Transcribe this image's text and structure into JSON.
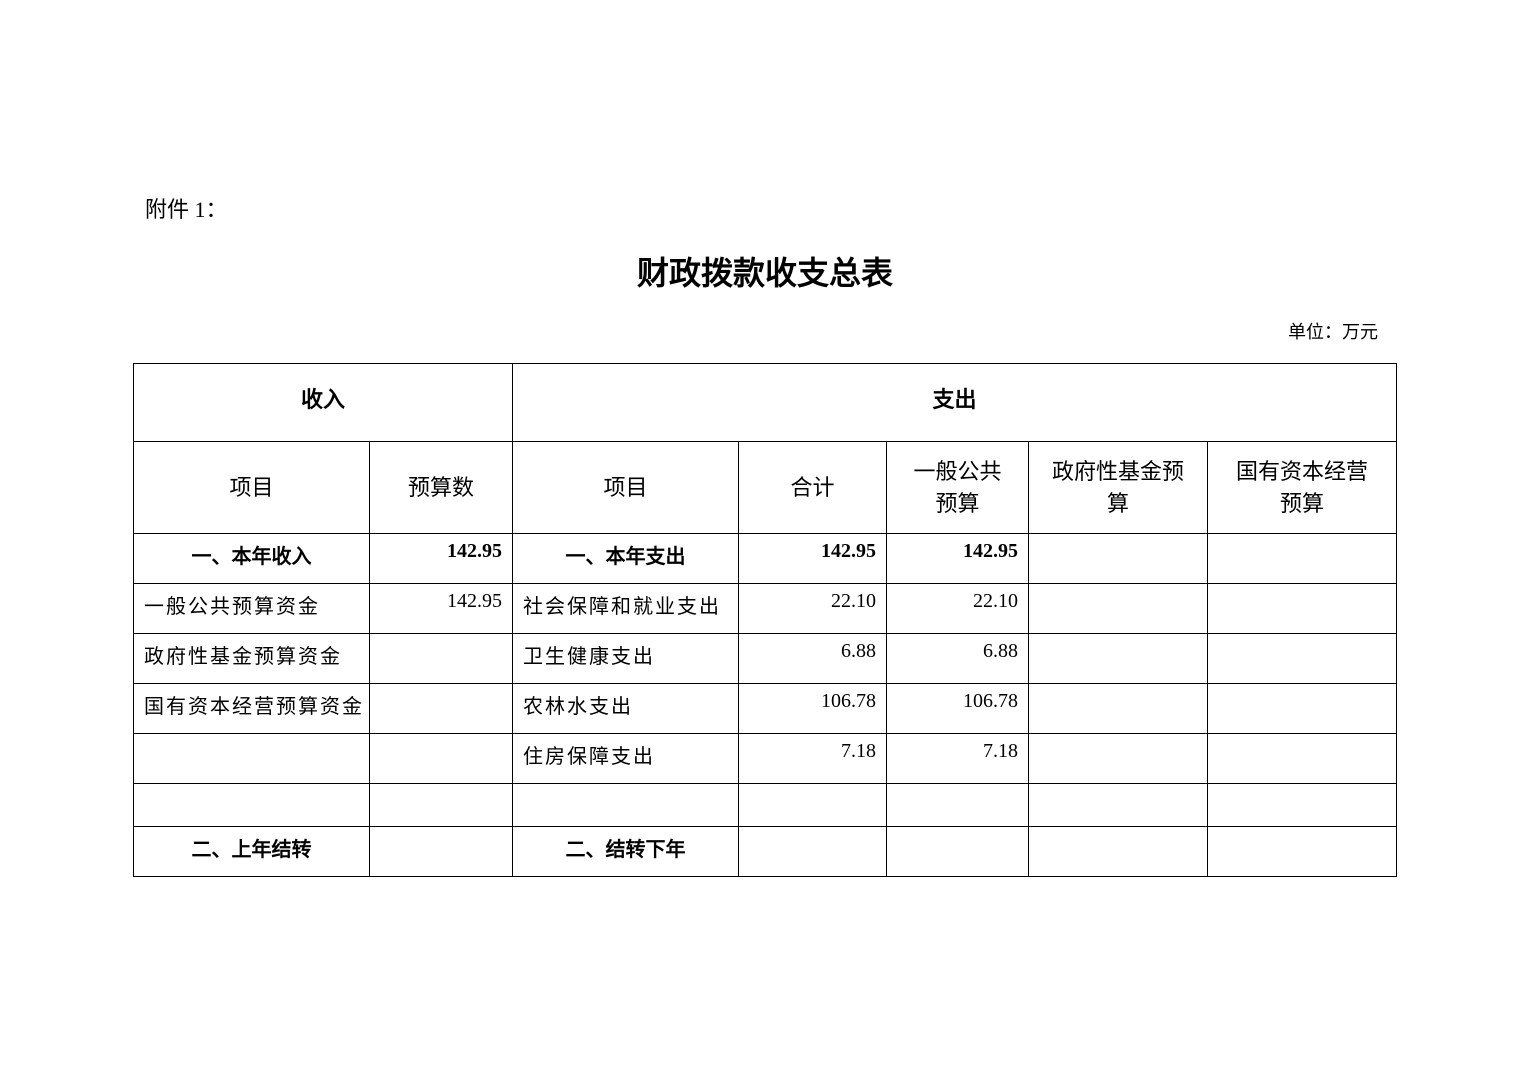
{
  "attachment_label": "附件 1：",
  "title": "财政拨款收支总表",
  "unit": "单位：万元",
  "table": {
    "group_headers": {
      "income": "收入",
      "expense": "支出"
    },
    "columns": [
      "项目",
      "预算数",
      "项目",
      "合计",
      "一般公共预算",
      "政府性基金预算",
      "国有资本经营预算"
    ],
    "rows": [
      [
        "一、本年收入",
        "142.95",
        "一、本年支出",
        "142.95",
        "142.95",
        "",
        ""
      ],
      [
        "一般公共预算资金",
        "142.95",
        "社会保障和就业支出",
        "22.10",
        "22.10",
        "",
        ""
      ],
      [
        "政府性基金预算资金",
        "",
        "卫生健康支出",
        "6.88",
        "6.88",
        "",
        ""
      ],
      [
        "国有资本经营预算资金",
        "",
        "农林水支出",
        "106.78",
        "106.78",
        "",
        ""
      ],
      [
        "",
        "",
        "住房保障支出",
        "7.18",
        "7.18",
        "",
        ""
      ],
      [
        "",
        "",
        "",
        "",
        "",
        "",
        ""
      ],
      [
        "二、上年结转",
        "",
        "二、结转下年",
        "",
        "",
        "",
        ""
      ]
    ]
  }
}
